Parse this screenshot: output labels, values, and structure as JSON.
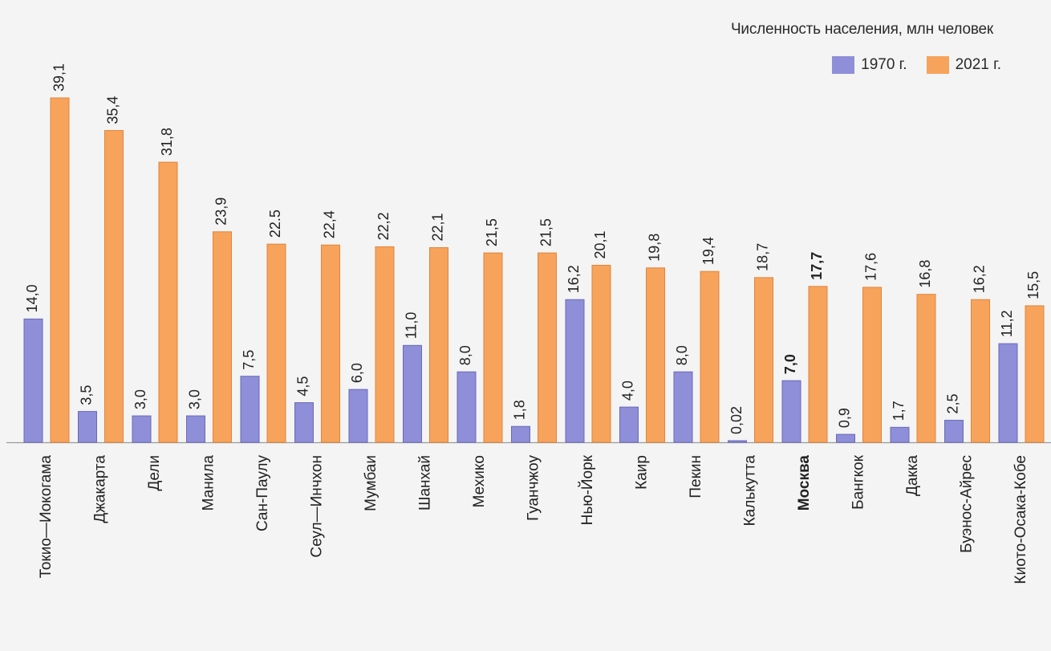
{
  "chart_data": {
    "type": "bar",
    "title": "Численность населения, млн человек",
    "ylim": [
      0,
      40
    ],
    "grid": false,
    "legend_position": "top-right",
    "categories": [
      "Токио—Иокогама",
      "Джакарта",
      "Дели",
      "Манила",
      "Сан-Паулу",
      "Сеул—Инчхон",
      "Мумбаи",
      "Шанхай",
      "Мехико",
      "Гуанчжоу",
      "Нью-Йорк",
      "Каир",
      "Пекин",
      "Калькутта",
      "Москва",
      "Бангкок",
      "Дакка",
      "Буэнос-Айрес",
      "Киото-Осака-Кобе"
    ],
    "series": [
      {
        "name": "1970 г.",
        "color": "#8f8ed8",
        "values": [
          14.0,
          3.5,
          3.0,
          3.0,
          7.5,
          4.5,
          6.0,
          11.0,
          8.0,
          1.8,
          16.2,
          4.0,
          8.0,
          0.02,
          7.0,
          0.9,
          1.7,
          2.5,
          11.2
        ],
        "labels": [
          "14,0",
          "3,5",
          "3,0",
          "3,0",
          "7,5",
          "4,5",
          "6,0",
          "11,0",
          "8,0",
          "1,8",
          "16,2",
          "4,0",
          "8,0",
          "0,02",
          "7,0",
          "0,9",
          "1,7",
          "2,5",
          "11,2"
        ]
      },
      {
        "name": "2021 г.",
        "color": "#f7a35c",
        "values": [
          39.1,
          35.4,
          31.8,
          23.9,
          22.5,
          22.4,
          22.2,
          22.1,
          21.5,
          21.5,
          20.1,
          19.8,
          19.4,
          18.7,
          17.7,
          17.6,
          16.8,
          16.2,
          15.5
        ],
        "labels": [
          "39,1",
          "35,4",
          "31,8",
          "23,9",
          "22.5",
          "22,4",
          "22,2",
          "22,1",
          "21,5",
          "21,5",
          "20,1",
          "19,8",
          "19,4",
          "18,7",
          "17,7",
          "17,6",
          "16,8",
          "16,2",
          "15,5"
        ]
      }
    ],
    "bold_category": "Москва"
  }
}
